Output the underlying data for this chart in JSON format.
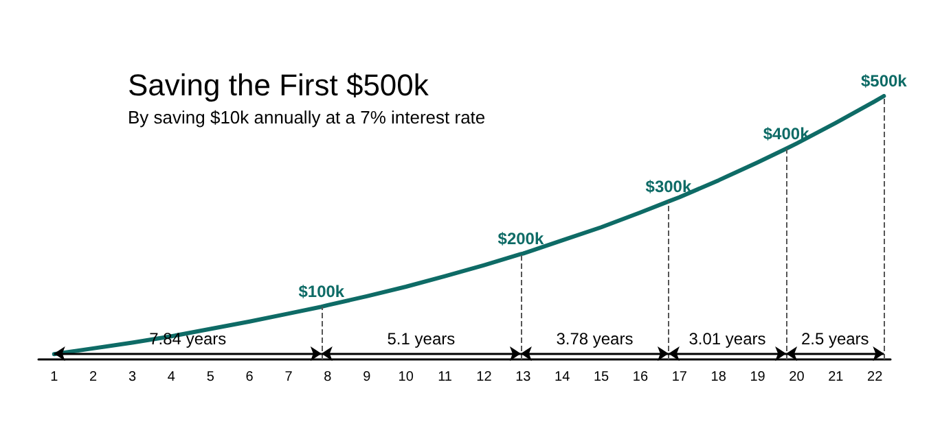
{
  "chart_data": {
    "type": "line",
    "title": "Saving the First $500k",
    "subtitle": "By saving $10k annually at a 7% interest rate",
    "x": [
      1,
      2,
      3,
      4,
      5,
      6,
      7,
      7.84,
      8,
      9,
      10,
      11,
      12,
      12.94,
      13,
      14,
      15,
      16,
      16.72,
      17,
      18,
      19,
      19.73,
      20,
      21,
      22,
      22.23
    ],
    "series": [
      {
        "color": "#0e6b66",
        "values": [
          10,
          21,
          32,
          44,
          58,
          72,
          87,
          100,
          103,
          120,
          138,
          158,
          179,
          200,
          201,
          226,
          251,
          279,
          300,
          308,
          340,
          374,
          400,
          410,
          449,
          490,
          500
        ],
        "value_labels": [
          null,
          null,
          null,
          null,
          null,
          null,
          null,
          "$100k",
          null,
          null,
          null,
          null,
          null,
          "$200k",
          null,
          null,
          null,
          null,
          "$300k",
          null,
          null,
          null,
          "$400k",
          null,
          null,
          null,
          "$500k"
        ]
      }
    ],
    "xlim": [
      0.6,
      22.4
    ],
    "xticks": [
      1,
      2,
      3,
      4,
      5,
      6,
      7,
      8,
      9,
      10,
      11,
      12,
      13,
      14,
      15,
      16,
      17,
      18,
      19,
      20,
      21,
      22
    ],
    "ylim": [
      0,
      500
    ],
    "tick_labels": "x",
    "grid": false,
    "marker": "none",
    "line_style": "solid",
    "ref_lines": [
      {
        "axis": "x",
        "value": 7.84,
        "line_style": "dashed",
        "color": "#555555"
      },
      {
        "axis": "x",
        "value": 12.94,
        "line_style": "dashed",
        "color": "#555555"
      },
      {
        "axis": "x",
        "value": 16.72,
        "line_style": "dashed",
        "color": "#555555"
      },
      {
        "axis": "x",
        "value": 19.73,
        "line_style": "dashed",
        "color": "#555555"
      },
      {
        "axis": "x",
        "value": 22.23,
        "line_style": "dashed",
        "color": "#555555"
      }
    ],
    "annotations": [
      "7.84 years",
      "5.1 years",
      "3.78 years",
      "3.01 years",
      "2.5 years"
    ]
  }
}
